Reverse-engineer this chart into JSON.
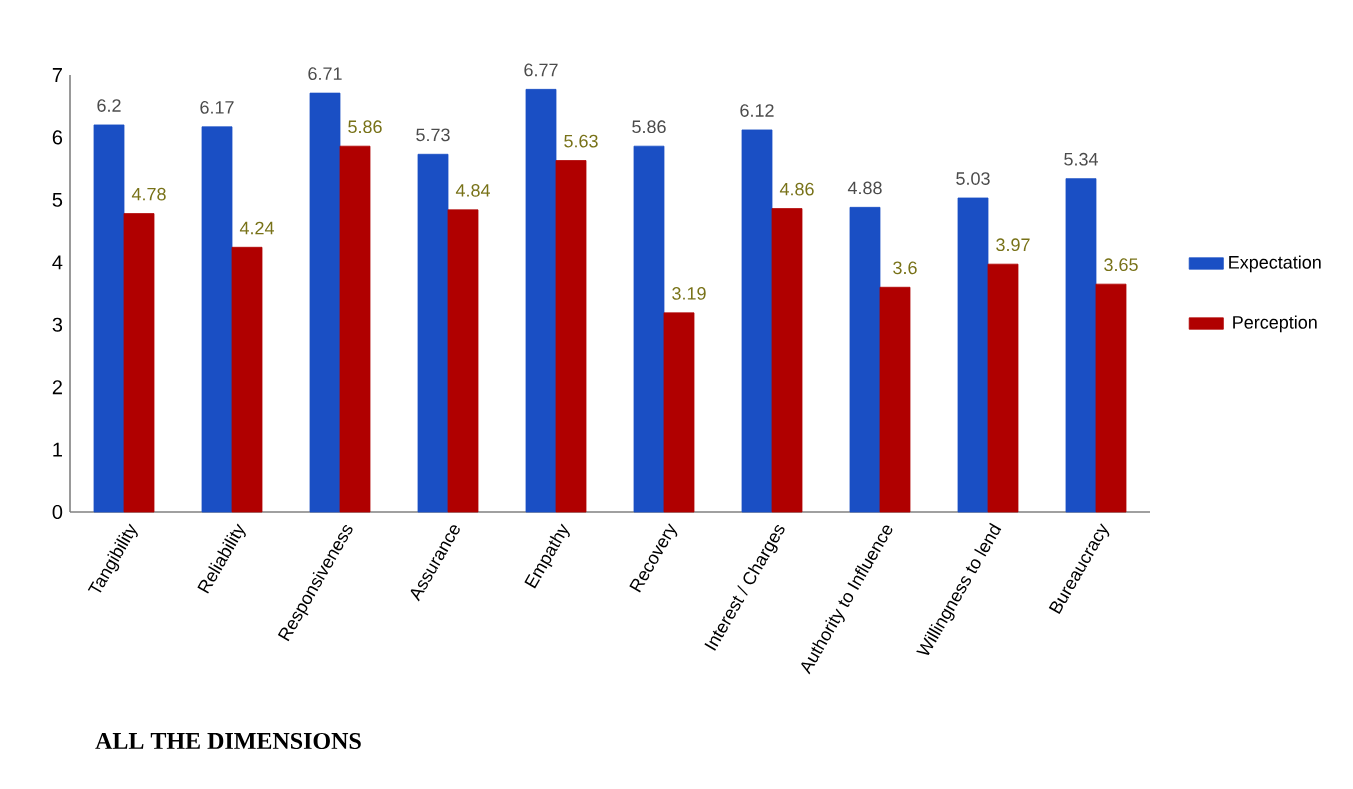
{
  "chart_data": {
    "type": "bar",
    "title": "ALL THE DIMENSIONS",
    "categories": [
      "Tangibility",
      "Reliability",
      "Responsiveness",
      "Assurance",
      "Empathy",
      "Recovery",
      "Interest / Charges",
      "Authority to Influence",
      "Willingness to lend",
      "Bureaucracy"
    ],
    "series": [
      {
        "name": "Expectation",
        "color": "#1a4fc4",
        "values": [
          6.2,
          6.17,
          6.71,
          5.73,
          6.77,
          5.86,
          6.12,
          4.88,
          5.03,
          5.34
        ]
      },
      {
        "name": "Perception",
        "color": "#b00000",
        "values": [
          4.78,
          4.24,
          5.86,
          4.84,
          5.63,
          3.19,
          4.86,
          3.6,
          3.97,
          3.65
        ]
      }
    ],
    "ylim": [
      0,
      7
    ],
    "yticks": [
      0,
      1,
      2,
      3,
      4,
      5,
      6,
      7
    ],
    "data_labels": true,
    "legend": "right",
    "grid": false
  }
}
